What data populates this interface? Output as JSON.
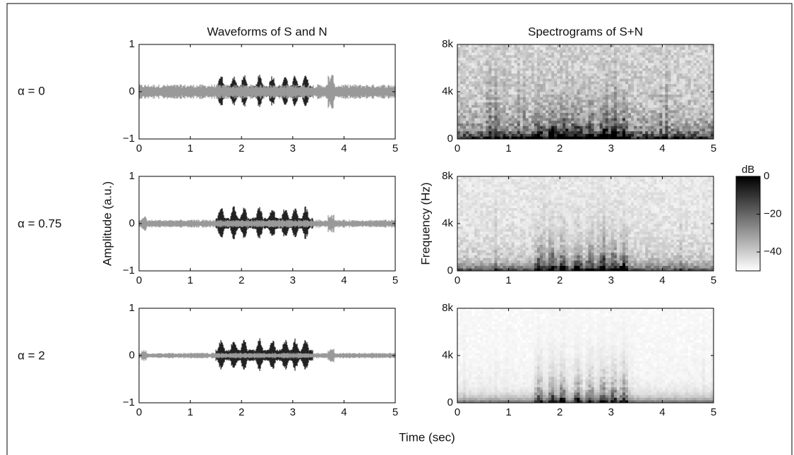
{
  "figure": {
    "row_labels": [
      "α = 0",
      "α = 0.75",
      "α = 2"
    ],
    "xlabel": "Time (sec)"
  },
  "chart_data": [
    {
      "type": "waveform",
      "title": "Waveforms of S and N",
      "xlim": [
        0,
        5
      ],
      "xticks": [
        0,
        1,
        2,
        3,
        4,
        5
      ],
      "ylim": [
        -1,
        1
      ],
      "yticks": [
        {
          "value": -1,
          "label": "−1"
        },
        0,
        1
      ],
      "colors": [
        "#222222",
        "#999999"
      ]
    },
    {
      "type": "spectrogram",
      "title": "Spectrograms of S+N",
      "xlim": [
        0,
        5
      ],
      "xticks": [
        0,
        1,
        2,
        3,
        4,
        5
      ],
      "ylim": [
        0,
        8000
      ],
      "yticks": [
        0,
        {
          "value": 4000,
          "label": "4k"
        },
        {
          "value": 8000,
          "label": "8k"
        }
      ]
    },
    {
      "type": "waveform",
      "ylabel": "Amplitude (a.u.)",
      "xlim": [
        0,
        5
      ],
      "xticks": [
        0,
        1,
        2,
        3,
        4,
        5
      ],
      "ylim": [
        -1,
        1
      ],
      "yticks": [
        {
          "value": -1,
          "label": "−1"
        },
        0,
        1
      ],
      "colors": [
        "#222222",
        "#999999"
      ]
    },
    {
      "type": "spectrogram",
      "ylabel": "Frequency (Hz)",
      "xlim": [
        0,
        5
      ],
      "xticks": [
        0,
        1,
        2,
        3,
        4,
        5
      ],
      "ylim": [
        0,
        8000
      ],
      "yticks": [
        0,
        {
          "value": 4000,
          "label": "4k"
        },
        {
          "value": 8000,
          "label": "8k"
        }
      ]
    },
    {
      "type": "waveform",
      "xlim": [
        0,
        5
      ],
      "xticks": [
        0,
        1,
        2,
        3,
        4,
        5
      ],
      "ylim": [
        -1,
        1
      ],
      "yticks": [
        {
          "value": -1,
          "label": "−1"
        },
        0,
        1
      ],
      "colors": [
        "#222222",
        "#999999"
      ]
    },
    {
      "type": "spectrogram",
      "xlim": [
        0,
        5
      ],
      "xticks": [
        0,
        1,
        2,
        3,
        4,
        5
      ],
      "ylim": [
        0,
        8000
      ],
      "yticks": [
        0,
        {
          "value": 4000,
          "label": "4k"
        },
        {
          "value": 8000,
          "label": "8k"
        }
      ]
    },
    {
      "type": "colorbar",
      "title": "dB",
      "ylim": [
        -50,
        0
      ],
      "yticks": [
        0,
        {
          "value": -20,
          "label": "−20"
        },
        {
          "value": -40,
          "label": "−40"
        }
      ]
    }
  ]
}
